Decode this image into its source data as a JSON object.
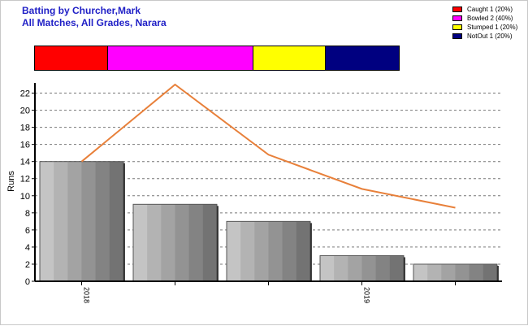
{
  "header": {
    "title": "Batting by Churcher,Mark",
    "subtitle": "All Matches, All Grades, Narara"
  },
  "legend": {
    "items": [
      {
        "label": "Caught 1 (20%)",
        "color": "#ff0000"
      },
      {
        "label": "Bowled 2 (40%)",
        "color": "#ff00ff"
      },
      {
        "label": "Stumped 1 (20%)",
        "color": "#ffff00"
      },
      {
        "label": "NotOut 1 (20%)",
        "color": "#000080"
      }
    ]
  },
  "distribution": [
    {
      "name": "Caught",
      "value": 1,
      "color": "#ff0000"
    },
    {
      "name": "Bowled",
      "value": 2,
      "color": "#ff00ff"
    },
    {
      "name": "Stumped",
      "value": 1,
      "color": "#ffff00"
    },
    {
      "name": "NotOut",
      "value": 1,
      "color": "#000080"
    }
  ],
  "chart_data": {
    "type": "bar",
    "ylabel": "Runs",
    "xlabel": "",
    "ylim": [
      0,
      23
    ],
    "yticks": [
      0,
      2,
      4,
      6,
      8,
      10,
      12,
      14,
      16,
      18,
      20,
      22
    ],
    "categories": [
      "2018",
      "",
      "",
      "2019",
      ""
    ],
    "series": [
      {
        "type": "bar",
        "values": [
          14,
          9,
          7,
          3,
          2
        ]
      },
      {
        "type": "line",
        "values": [
          14,
          23,
          14.8,
          10.8,
          8.6
        ],
        "color": "#e8803a"
      }
    ],
    "grid": true,
    "legend_position": "top-right"
  }
}
